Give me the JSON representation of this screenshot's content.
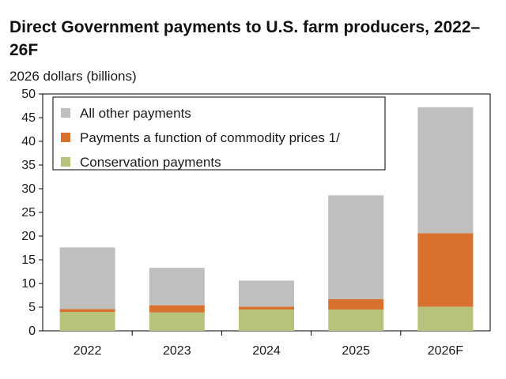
{
  "chart_data": {
    "type": "bar",
    "stacked": true,
    "title": "Direct Government payments to U.S. farm producers, 2022–26F",
    "ylabel": "2026 dollars (billions)",
    "xlabel": "",
    "categories": [
      "2022",
      "2023",
      "2024",
      "2025",
      "2026F"
    ],
    "ylim": [
      0,
      50
    ],
    "yticks": [
      0,
      5,
      10,
      15,
      20,
      25,
      30,
      35,
      40,
      45,
      50
    ],
    "grid": false,
    "legend_position": "top-left",
    "series": [
      {
        "name": "Conservation payments",
        "color": "#b8c27a",
        "values": [
          4.0,
          3.9,
          4.5,
          4.5,
          5.1
        ]
      },
      {
        "name": "Payments a function of commodity prices 1/",
        "color": "#d8702e",
        "values": [
          0.6,
          1.5,
          0.6,
          2.2,
          15.5
        ]
      },
      {
        "name": "All other payments",
        "color": "#bfbfbf",
        "values": [
          13.0,
          7.9,
          5.5,
          21.9,
          26.6
        ]
      }
    ],
    "legend_order": [
      "All other payments",
      "Payments a function of commodity prices 1/",
      "Conservation payments"
    ]
  }
}
